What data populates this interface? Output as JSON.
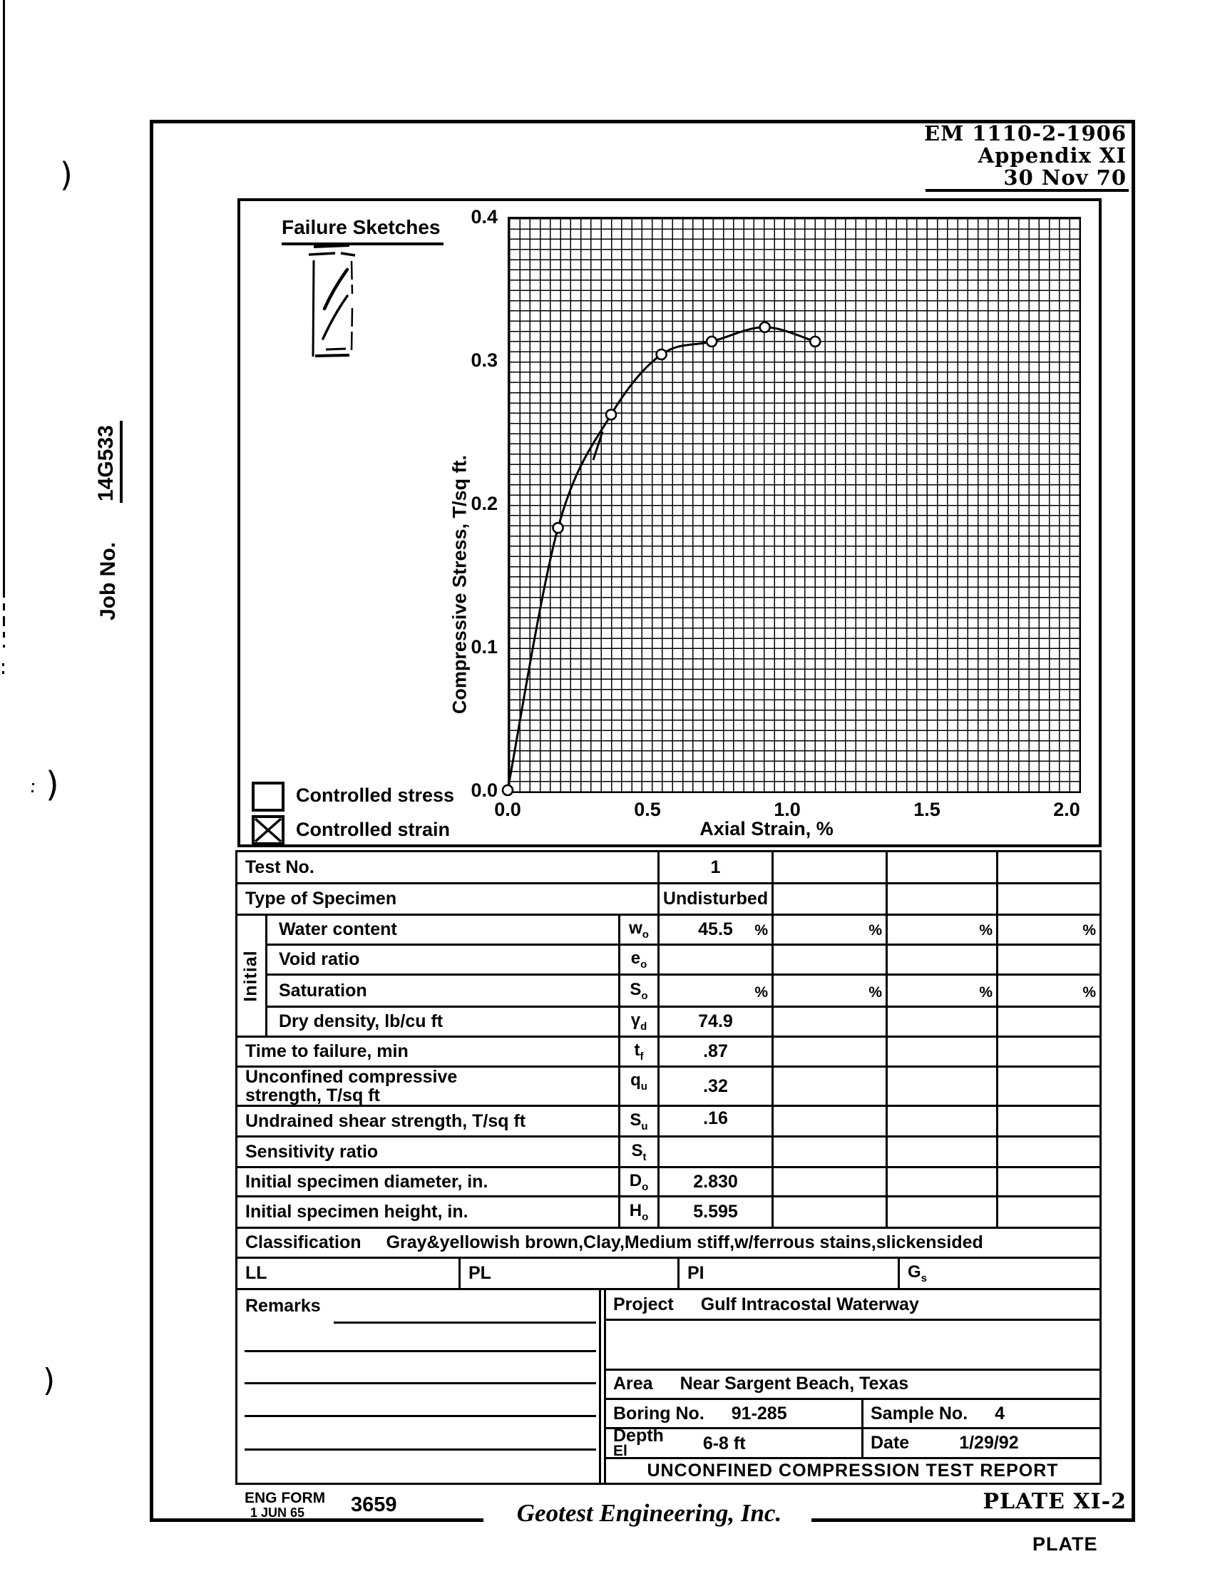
{
  "header": {
    "doc_ref": "EM 1110-2-1906",
    "appendix": "Appendix XI",
    "date": "30 Nov 70"
  },
  "margin": {
    "job_label": "Job No.",
    "job_number": "14G533",
    "paren": ")"
  },
  "chart_data": {
    "type": "line",
    "title": "",
    "xlabel": "Axial Strain, %",
    "ylabel": "Compressive Stress, T/sq ft.",
    "xlim": [
      0.0,
      2.0
    ],
    "ylim": [
      0.0,
      0.4
    ],
    "xticks": [
      "0.0",
      "0.5",
      "1.0",
      "1.5",
      "2.0"
    ],
    "yticks": [
      "0.4",
      "0.3",
      "0.2",
      "0.1",
      "0.0"
    ],
    "grid": true,
    "marker": "circle",
    "failure_sketch_label": "Failure Sketches",
    "series": [
      {
        "name": "Test 1",
        "points": [
          [
            0.0,
            0.0
          ],
          [
            0.18,
            0.183
          ],
          [
            0.37,
            0.262
          ],
          [
            0.55,
            0.304
          ],
          [
            0.73,
            0.313
          ],
          [
            0.92,
            0.323
          ],
          [
            1.1,
            0.313
          ]
        ]
      }
    ],
    "legend": [
      {
        "label": "Controlled stress",
        "checked": false
      },
      {
        "label": "Controlled strain",
        "checked": true
      }
    ]
  },
  "table": {
    "initial_group_label": "Initial",
    "rows": [
      {
        "label": "Test No.",
        "v1": "1"
      },
      {
        "label": "Type of Specimen",
        "v1": "Undisturbed"
      },
      {
        "label": "Water content",
        "sym_base": "w",
        "sym_sub": "o",
        "v1": "45.5",
        "pct": "%"
      },
      {
        "label": "Void ratio",
        "sym_base": "e",
        "sym_sub": "o",
        "v1": ""
      },
      {
        "label": "Saturation",
        "sym_base": "S",
        "sym_sub": "o",
        "v1": "",
        "pct": "%"
      },
      {
        "label": "Dry density, lb/cu ft",
        "sym_base": "γ",
        "sym_sub": "d",
        "v1": "74.9"
      },
      {
        "label": "Time to failure, min",
        "sym_base": "t",
        "sym_sub": "f",
        "v1": ".87"
      },
      {
        "label_line1": "Unconfined compressive",
        "label_line2": "strength, T/sq ft",
        "sym_base": "q",
        "sym_sub": "u",
        "v1": ".32"
      },
      {
        "label": "Undrained shear strength, T/sq ft",
        "sym_base": "S",
        "sym_sub": "u",
        "v1": ".16"
      },
      {
        "label": "Sensitivity ratio",
        "sym_base": "S",
        "sym_sub": "t",
        "v1": ""
      },
      {
        "label": "Initial specimen diameter, in.",
        "sym_base": "D",
        "sym_sub": "o",
        "v1": "2.830"
      },
      {
        "label": "Initial specimen height, in.",
        "sym_base": "H",
        "sym_sub": "o",
        "v1": "5.595"
      }
    ],
    "classification_label": "Classification",
    "classification_value": "Gray&yellowish brown,Clay,Medium stiff,w/ferrous stains,slickensided",
    "atterberg": {
      "ll": "LL",
      "pl": "PL",
      "pi": "PI",
      "gs_base": "G",
      "gs_sub": "s"
    }
  },
  "bottom": {
    "remarks_label": "Remarks",
    "project_label": "Project",
    "project": "Gulf Intracostal Waterway",
    "area_label": "Area",
    "area": "Near Sargent Beach, Texas",
    "boring_label": "Boring No.",
    "boring": "91-285",
    "sample_label": "Sample No.",
    "sample": "4",
    "depth_label": "Depth",
    "el_label": "El",
    "depth": "6-8 ft",
    "date_label": "Date",
    "date": "1/29/92",
    "report_title": "UNCONFINED COMPRESSION TEST REPORT"
  },
  "footer": {
    "form_label": "ENG FORM",
    "form_date": "1 JUN 65",
    "form_number": "3659",
    "company": "Geotest Engineering, Inc.",
    "plate": "PLATE XI-2",
    "plate_word": "PLATE"
  }
}
